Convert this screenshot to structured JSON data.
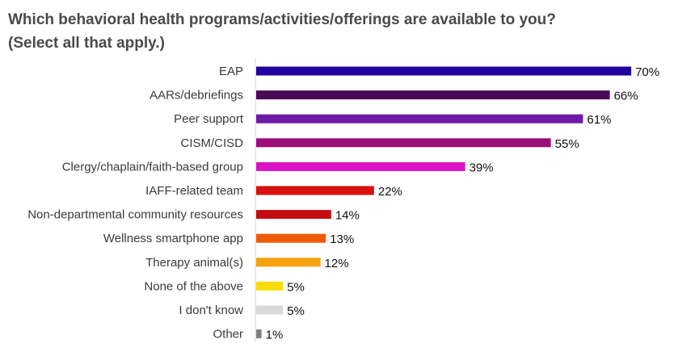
{
  "chart_data": {
    "type": "bar",
    "orientation": "horizontal",
    "title_line1": "Which behavioral health programs/activities/offerings are available to you?",
    "title_line2": "(Select all that apply.)",
    "categories": [
      "EAP",
      "AARs/debriefings",
      "Peer support",
      "CISM/CISD",
      "Clergy/chaplain/faith-based group",
      "IAFF-related team",
      "Non-departmental community resources",
      "Wellness smartphone app",
      "Therapy animal(s)",
      "None of the above",
      "I don't know",
      "Other"
    ],
    "values": [
      70,
      66,
      61,
      55,
      39,
      22,
      14,
      13,
      12,
      5,
      5,
      1
    ],
    "value_labels": [
      "70%",
      "66%",
      "61%",
      "55%",
      "39%",
      "22%",
      "14%",
      "13%",
      "12%",
      "5%",
      "5%",
      "1%"
    ],
    "colors": [
      "#2300a0",
      "#4b0a55",
      "#6e1aa6",
      "#9c0f79",
      "#dc12c4",
      "#d8120c",
      "#c50c12",
      "#ef5a08",
      "#f5a20c",
      "#f9dd0a",
      "#d9d9d9",
      "#7f7f7f"
    ],
    "xlim": [
      0,
      100
    ],
    "grid": false,
    "axis_color": "#d9d9d9"
  }
}
